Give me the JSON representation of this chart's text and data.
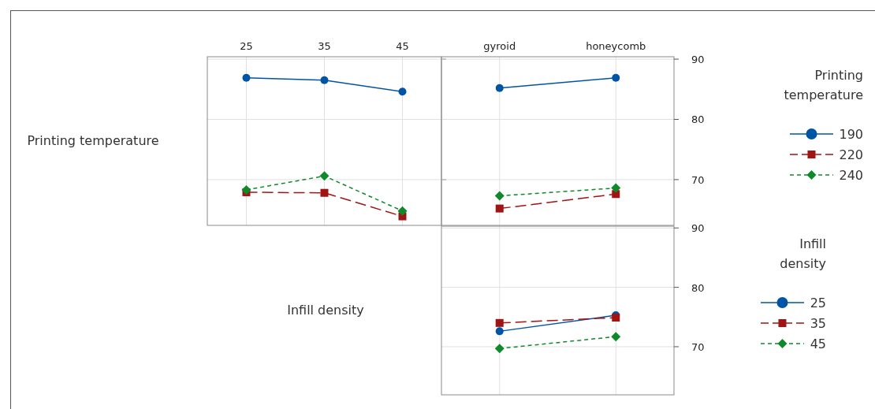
{
  "chart_data": [
    {
      "type": "line",
      "ylabel": "Printing temperature",
      "x": [
        25,
        35,
        45
      ],
      "xlim": [
        20,
        50
      ],
      "xticks": [
        25,
        35,
        45
      ],
      "ylim": [
        62.4,
        90.4
      ],
      "yticks": [
        70,
        80,
        90
      ],
      "grid": true,
      "tick_labels": "x",
      "legend": false,
      "series": [
        {
          "color": "#0054a6",
          "values": [
            86.9,
            86.5,
            84.6
          ],
          "marker": "circle",
          "line_style": "solid"
        },
        {
          "color": "#a01414",
          "values": [
            67.9,
            67.8,
            63.9
          ],
          "marker": "square",
          "line_style": "dashed"
        },
        {
          "color": "#0f8a2a",
          "values": [
            68.3,
            70.6,
            64.8
          ],
          "marker": "diamond",
          "line_style": "dotted"
        }
      ]
    },
    {
      "type": "line",
      "categories": [
        "gyroid",
        "honeycomb"
      ],
      "ylim": [
        62.4,
        90.4
      ],
      "yticks": [
        70,
        80,
        90
      ],
      "grid": true,
      "legend": "right",
      "legend_title": "Printing temperature",
      "series": [
        {
          "name": "190",
          "color": "#0054a6",
          "values": [
            85.2,
            86.9
          ],
          "marker": "circle",
          "line_style": "solid"
        },
        {
          "name": "220",
          "color": "#a01414",
          "values": [
            65.2,
            67.6
          ],
          "marker": "square",
          "line_style": "dashed"
        },
        {
          "name": "240",
          "color": "#0f8a2a",
          "values": [
            67.3,
            68.6
          ],
          "marker": "diamond",
          "line_style": "dotted"
        }
      ]
    },
    {
      "type": "line",
      "ylabel": "Infill density",
      "categories": [
        null,
        null
      ],
      "ylim": [
        61.9,
        90.3
      ],
      "yticks": [
        70,
        80,
        90
      ],
      "grid": true,
      "tick_labels": "y",
      "legend": "right",
      "legend_title": "Infill density",
      "series": [
        {
          "name": "25",
          "color": "#0054a6",
          "values": [
            72.6,
            75.3
          ],
          "marker": "circle",
          "line_style": "solid"
        },
        {
          "name": "35",
          "color": "#a01414",
          "values": [
            74.0,
            74.9
          ],
          "marker": "square",
          "line_style": "dashed"
        },
        {
          "name": "45",
          "color": "#0f8a2a",
          "values": [
            69.7,
            71.7
          ],
          "marker": "diamond",
          "line_style": "dotted"
        }
      ]
    }
  ]
}
